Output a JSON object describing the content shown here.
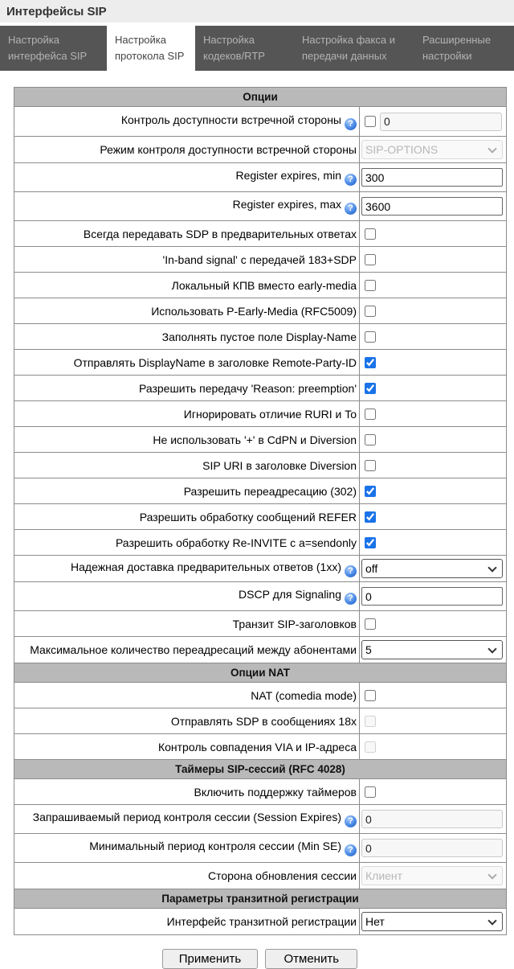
{
  "page": {
    "title": "Интерфейсы SIP"
  },
  "tabs": [
    {
      "label": "Настройка интерфейса SIP",
      "active": false
    },
    {
      "label": "Настройка протокола SIP",
      "active": true
    },
    {
      "label": "Настройка кодеков/RTP",
      "active": false
    },
    {
      "label": "Настройка факса и передачи данных",
      "active": false
    },
    {
      "label": "Расширенные настройки",
      "active": false
    }
  ],
  "table": {
    "rows": [
      {
        "section": "Опции"
      },
      {
        "label": "Контроль доступности встречной стороны",
        "help": true,
        "kind": "checktext",
        "checked": false,
        "value": "0",
        "text_disabled": true
      },
      {
        "label": "Режим контроля доступности встречной стороны",
        "kind": "select",
        "value": "SIP-OPTIONS",
        "disabled": true
      },
      {
        "label": "Register expires, min",
        "help": true,
        "kind": "text",
        "value": "300"
      },
      {
        "label": "Register expires, max",
        "help": true,
        "kind": "text",
        "value": "3600"
      },
      {
        "label": "Всегда передавать SDP в предварительных ответах",
        "kind": "check",
        "checked": false
      },
      {
        "label": "'In-band signal' с передачей 183+SDP",
        "kind": "check",
        "checked": false
      },
      {
        "label": "Локальный КПВ вместо early-media",
        "kind": "check",
        "checked": false
      },
      {
        "label": "Использовать P-Early-Media (RFC5009)",
        "kind": "check",
        "checked": false
      },
      {
        "label": "Заполнять пустое поле Display-Name",
        "kind": "check",
        "checked": false
      },
      {
        "label": "Отправлять DisplayName в заголовке Remote-Party-ID",
        "kind": "check",
        "checked": true
      },
      {
        "label": "Разрешить передачу 'Reason: preemption'",
        "kind": "check",
        "checked": true
      },
      {
        "label": "Игнорировать отличие RURI и To",
        "kind": "check",
        "checked": false
      },
      {
        "label": "Не использовать '+' в CdPN и Diversion",
        "kind": "check",
        "checked": false
      },
      {
        "label": "SIP URI в заголовке Diversion",
        "kind": "check",
        "checked": false
      },
      {
        "label": "Разрешить переадресацию (302)",
        "kind": "check",
        "checked": true
      },
      {
        "label": "Разрешить обработку сообщений REFER",
        "kind": "check",
        "checked": true
      },
      {
        "label": "Разрешить обработку Re-INVITE с a=sendonly",
        "kind": "check",
        "checked": true
      },
      {
        "label": "Надежная доставка предварительных ответов (1xx)",
        "help": true,
        "kind": "select",
        "value": "off"
      },
      {
        "label": "DSCP для Signaling",
        "help": true,
        "kind": "text",
        "value": "0"
      },
      {
        "label": "Транзит SIP-заголовков",
        "kind": "check",
        "checked": false
      },
      {
        "label": "Максимальное количество переадресаций между абонентами",
        "kind": "select",
        "value": "5"
      },
      {
        "section": "Опции NAT"
      },
      {
        "label": "NAT (comedia mode)",
        "kind": "check",
        "checked": false
      },
      {
        "label": "Отправлять SDP в сообщениях 18x",
        "kind": "check",
        "checked": false,
        "disabled": true
      },
      {
        "label": "Контроль совпадения VIA и IP-адреса",
        "kind": "check",
        "checked": false,
        "disabled": true
      },
      {
        "section": "Таймеры SIP-сессий (RFC 4028)"
      },
      {
        "label": "Включить поддержку таймеров",
        "kind": "check",
        "checked": false
      },
      {
        "label": "Запрашиваемый период контроля сессии (Session Expires)",
        "help": true,
        "kind": "text",
        "value": "0",
        "disabled": true
      },
      {
        "label": "Минимальный период контроля сессии (Min SE)",
        "help": true,
        "kind": "text",
        "value": "0",
        "disabled": true
      },
      {
        "label": "Сторона обновления сессии",
        "kind": "select",
        "value": "Клиент",
        "disabled": true
      },
      {
        "section": "Параметры транзитной регистрации"
      },
      {
        "label": "Интерфейс транзитной регистрации",
        "kind": "select",
        "value": "Нет"
      }
    ]
  },
  "buttons": {
    "apply": "Применить",
    "cancel": "Отменить"
  },
  "icons": {
    "help": "help-icon",
    "chevron": "chevron-down-icon"
  },
  "colors": {
    "accent": "#1a73e8",
    "section_bg": "#b9b9b9",
    "tabbar_bg": "#555555",
    "titlebar_bg": "#ededed"
  }
}
